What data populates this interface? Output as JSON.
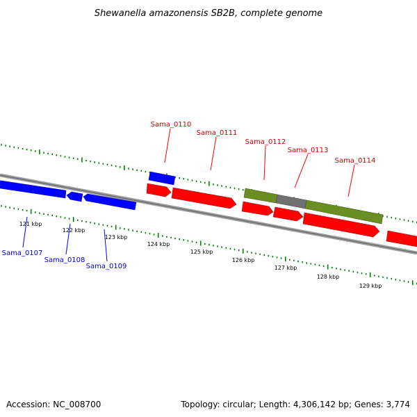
{
  "title": "Shewanella amazonensis SB2B, complete genome",
  "footer": {
    "accession": "Accession: NC_008700",
    "summary": "Topology: circular; Length: 4,306,142 bp; Genes: 3,774"
  },
  "colors": {
    "forward_gene": "#ff0000",
    "reverse_gene": "#0000ff",
    "feature_green": "#6b8e23",
    "feature_gray": "#707070",
    "backbone": "#808080",
    "tick": "#008000"
  },
  "tick_labels": [
    "121 kbp",
    "122 kbp",
    "123 kbp",
    "124 kbp",
    "125 kbp",
    "126 kbp",
    "127 kbp",
    "128 kbp",
    "129 kbp"
  ],
  "gene_labels_top": [
    "Sama_0110",
    "Sama_0111",
    "Sama_0112",
    "Sama_0113",
    "Sama_0114"
  ],
  "gene_labels_bottom": [
    "Sama_0107",
    "Sama_0108",
    "Sama_0109"
  ]
}
